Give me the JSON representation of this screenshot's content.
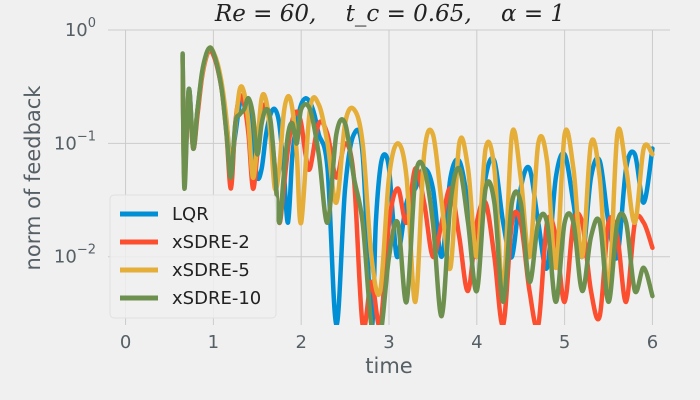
{
  "chart_data": {
    "type": "line",
    "title": "Re = 60,    t_c = 0.65,    α = 1",
    "title_parts": {
      "re": "Re = 60,",
      "tc": "t_c = 0.65,",
      "alpha": "α = 1"
    },
    "xlabel": "time",
    "ylabel": "norm of feedback",
    "xlim": [
      -0.2,
      6.2
    ],
    "ylim": [
      0.0025,
      1
    ],
    "yscale": "log",
    "x_ticks": [
      0,
      1,
      2,
      3,
      4,
      5,
      6
    ],
    "x_tick_labels": [
      "0",
      "1",
      "2",
      "3",
      "4",
      "5",
      "6"
    ],
    "y_ticks": [
      0.01,
      0.1,
      1
    ],
    "y_tick_labels": [
      {
        "base": "10",
        "exp": "−2"
      },
      {
        "base": "10",
        "exp": "−1"
      },
      {
        "base": "10",
        "exp": "0"
      }
    ],
    "grid": true,
    "legend": "lower-left",
    "series": [
      {
        "name": "LQR",
        "color": "#008fd5",
        "x": [
          0.65,
          0.67,
          0.72,
          0.77,
          0.82,
          0.87,
          0.92,
          0.96,
          1.0,
          1.05,
          1.1,
          1.15,
          1.2,
          1.25,
          1.3,
          1.35,
          1.4,
          1.45,
          1.5,
          1.55,
          1.6,
          1.65,
          1.7,
          1.75,
          1.8,
          1.85,
          1.9,
          1.95,
          2.0,
          2.05,
          2.1,
          2.15,
          2.2,
          2.3,
          2.4,
          2.5,
          2.6,
          2.7,
          2.8,
          2.85,
          2.9,
          2.95,
          3.0,
          3.05,
          3.1,
          3.2,
          3.3,
          3.4,
          3.5,
          3.6,
          3.7,
          3.8,
          3.9,
          4.0,
          4.1,
          4.2,
          4.3,
          4.4,
          4.5,
          4.6,
          4.7,
          4.8,
          4.9,
          5.0,
          5.1,
          5.2,
          5.3,
          5.4,
          5.5,
          5.6,
          5.7,
          5.8,
          5.9,
          6.0
        ],
        "y": [
          0.6,
          0.05,
          0.3,
          0.1,
          0.2,
          0.4,
          0.6,
          0.68,
          0.62,
          0.48,
          0.3,
          0.15,
          0.07,
          0.12,
          0.22,
          0.25,
          0.2,
          0.1,
          0.05,
          0.06,
          0.12,
          0.18,
          0.2,
          0.15,
          0.06,
          0.02,
          0.08,
          0.15,
          0.22,
          0.25,
          0.23,
          0.18,
          0.12,
          0.06,
          0.0025,
          0.04,
          0.12,
          0.08,
          0.0025,
          0.02,
          0.06,
          0.08,
          0.06,
          0.02,
          0.01,
          0.03,
          0.04,
          0.06,
          0.04,
          0.01,
          0.05,
          0.07,
          0.03,
          0.01,
          0.05,
          0.07,
          0.02,
          0.01,
          0.04,
          0.06,
          0.02,
          0.008,
          0.05,
          0.08,
          0.03,
          0.01,
          0.05,
          0.07,
          0.02,
          0.01,
          0.06,
          0.08,
          0.03,
          0.09
        ]
      },
      {
        "name": "xSDRE-2",
        "color": "#fc4f30",
        "x": [
          0.65,
          0.67,
          0.72,
          0.77,
          0.82,
          0.87,
          0.92,
          0.96,
          1.0,
          1.05,
          1.1,
          1.15,
          1.2,
          1.25,
          1.3,
          1.35,
          1.4,
          1.45,
          1.5,
          1.55,
          1.6,
          1.65,
          1.7,
          1.75,
          1.8,
          1.85,
          1.9,
          1.95,
          2.0,
          2.05,
          2.1,
          2.2,
          2.3,
          2.4,
          2.5,
          2.6,
          2.7,
          2.8,
          2.9,
          3.0,
          3.1,
          3.2,
          3.3,
          3.4,
          3.5,
          3.6,
          3.7,
          3.8,
          3.9,
          4.0,
          4.1,
          4.2,
          4.3,
          4.4,
          4.5,
          4.6,
          4.7,
          4.8,
          4.9,
          5.0,
          5.1,
          5.2,
          5.3,
          5.4,
          5.5,
          5.6,
          5.7,
          5.8,
          5.9,
          6.0
        ],
        "y": [
          0.55,
          0.06,
          0.25,
          0.09,
          0.18,
          0.38,
          0.58,
          0.66,
          0.6,
          0.45,
          0.28,
          0.12,
          0.04,
          0.15,
          0.26,
          0.22,
          0.12,
          0.04,
          0.08,
          0.18,
          0.22,
          0.15,
          0.06,
          0.02,
          0.04,
          0.09,
          0.16,
          0.19,
          0.15,
          0.08,
          0.06,
          0.15,
          0.12,
          0.05,
          0.1,
          0.05,
          0.0025,
          0.006,
          0.0025,
          0.02,
          0.04,
          0.02,
          0.06,
          0.03,
          0.01,
          0.02,
          0.04,
          0.015,
          0.005,
          0.02,
          0.03,
          0.01,
          0.0025,
          0.02,
          0.02,
          0.005,
          0.0025,
          0.02,
          0.015,
          0.004,
          0.02,
          0.02,
          0.005,
          0.003,
          0.02,
          0.015,
          0.004,
          0.02,
          0.02,
          0.012
        ]
      },
      {
        "name": "xSDRE-5",
        "color": "#e5ae38",
        "x": [
          0.65,
          0.67,
          0.72,
          0.77,
          0.82,
          0.87,
          0.92,
          0.96,
          1.0,
          1.05,
          1.1,
          1.15,
          1.2,
          1.25,
          1.3,
          1.35,
          1.4,
          1.45,
          1.5,
          1.55,
          1.6,
          1.65,
          1.7,
          1.75,
          1.8,
          1.85,
          1.9,
          1.95,
          2.0,
          2.1,
          2.2,
          2.3,
          2.4,
          2.5,
          2.6,
          2.7,
          2.8,
          2.9,
          3.0,
          3.1,
          3.2,
          3.3,
          3.4,
          3.5,
          3.6,
          3.7,
          3.8,
          3.9,
          4.0,
          4.1,
          4.2,
          4.3,
          4.4,
          4.5,
          4.6,
          4.7,
          4.8,
          4.9,
          5.0,
          5.1,
          5.2,
          5.3,
          5.4,
          5.5,
          5.6,
          5.7,
          5.8,
          5.9,
          6.0
        ],
        "y": [
          0.58,
          0.05,
          0.28,
          0.1,
          0.2,
          0.4,
          0.6,
          0.7,
          0.64,
          0.5,
          0.32,
          0.16,
          0.06,
          0.14,
          0.3,
          0.28,
          0.15,
          0.05,
          0.1,
          0.25,
          0.24,
          0.12,
          0.04,
          0.06,
          0.18,
          0.26,
          0.2,
          0.08,
          0.02,
          0.2,
          0.22,
          0.1,
          0.03,
          0.15,
          0.2,
          0.1,
          0.01,
          0.005,
          0.05,
          0.1,
          0.05,
          0.004,
          0.08,
          0.12,
          0.03,
          0.008,
          0.1,
          0.06,
          0.01,
          0.09,
          0.06,
          0.005,
          0.12,
          0.05,
          0.01,
          0.1,
          0.07,
          0.008,
          0.12,
          0.06,
          0.01,
          0.1,
          0.05,
          0.005,
          0.12,
          0.06,
          0.02,
          0.09,
          0.08
        ]
      },
      {
        "name": "xSDRE-10",
        "color": "#6d904f",
        "x": [
          0.65,
          0.67,
          0.72,
          0.77,
          0.82,
          0.87,
          0.92,
          0.96,
          1.0,
          1.05,
          1.1,
          1.15,
          1.2,
          1.25,
          1.3,
          1.35,
          1.4,
          1.45,
          1.5,
          1.55,
          1.6,
          1.65,
          1.7,
          1.75,
          1.8,
          1.85,
          1.9,
          1.95,
          2.0,
          2.1,
          2.2,
          2.3,
          2.4,
          2.5,
          2.6,
          2.7,
          2.8,
          2.9,
          3.0,
          3.1,
          3.2,
          3.3,
          3.4,
          3.5,
          3.6,
          3.7,
          3.8,
          3.9,
          4.0,
          4.1,
          4.2,
          4.3,
          4.4,
          4.5,
          4.6,
          4.7,
          4.8,
          4.9,
          5.0,
          5.1,
          5.2,
          5.3,
          5.4,
          5.5,
          5.6,
          5.7,
          5.8,
          5.9,
          6.0
        ],
        "y": [
          0.62,
          0.04,
          0.3,
          0.09,
          0.2,
          0.42,
          0.62,
          0.7,
          0.63,
          0.46,
          0.28,
          0.12,
          0.05,
          0.15,
          0.18,
          0.2,
          0.25,
          0.18,
          0.08,
          0.15,
          0.2,
          0.16,
          0.06,
          0.02,
          0.05,
          0.12,
          0.15,
          0.1,
          0.2,
          0.2,
          0.08,
          0.02,
          0.12,
          0.15,
          0.05,
          0.02,
          0.0025,
          0.002,
          0.01,
          0.02,
          0.004,
          0.05,
          0.06,
          0.02,
          0.003,
          0.03,
          0.06,
          0.02,
          0.005,
          0.04,
          0.03,
          0.004,
          0.03,
          0.03,
          0.006,
          0.02,
          0.02,
          0.004,
          0.02,
          0.02,
          0.005,
          0.015,
          0.02,
          0.004,
          0.02,
          0.02,
          0.005,
          0.008,
          0.0045
        ]
      }
    ]
  }
}
